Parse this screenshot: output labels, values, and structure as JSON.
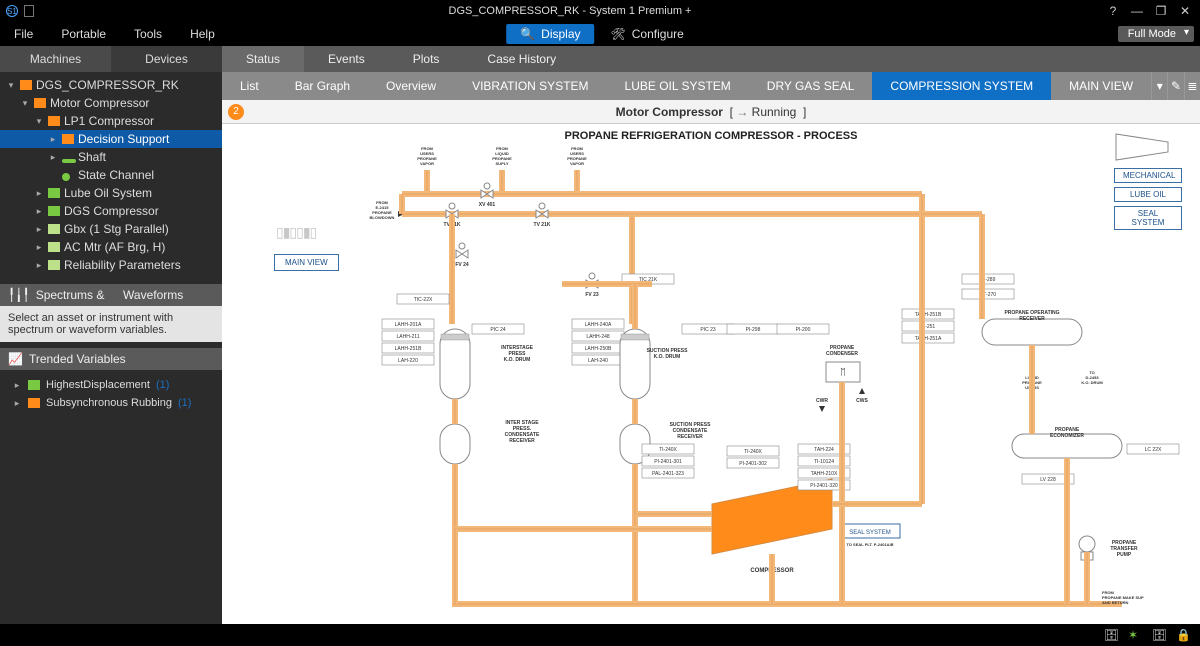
{
  "window": {
    "title": "DGS_COMPRESSOR_RK - System 1 Premium +",
    "mode": "Full Mode"
  },
  "menubar": {
    "items": [
      "File",
      "Portable",
      "Tools",
      "Help"
    ],
    "display_btn": "Display",
    "configure_btn": "Configure"
  },
  "sidebar": {
    "tabs": [
      "Machines",
      "Devices"
    ],
    "active_tab": 0,
    "tree": [
      {
        "label": "DGS_COMPRESSOR_RK",
        "indent": 0,
        "arrow": "▾",
        "icon": "ic-orange"
      },
      {
        "label": "Motor Compressor",
        "indent": 1,
        "arrow": "▾",
        "icon": "ic-orange"
      },
      {
        "label": "LP1 Compressor",
        "indent": 2,
        "arrow": "▾",
        "icon": "ic-orange"
      },
      {
        "label": "Decision Support",
        "indent": 3,
        "arrow": "▸",
        "icon": "ic-orange",
        "selected": true
      },
      {
        "label": "Shaft",
        "indent": 3,
        "arrow": "▸",
        "icon": "ic-bar"
      },
      {
        "label": "State Channel",
        "indent": 3,
        "arrow": "",
        "icon": "ic-dot"
      },
      {
        "label": "Lube Oil System",
        "indent": 2,
        "arrow": "▸",
        "icon": "ic-green"
      },
      {
        "label": "DGS Compressor",
        "indent": 2,
        "arrow": "▸",
        "icon": "ic-green"
      },
      {
        "label": "Gbx (1 Stg Parallel)",
        "indent": 2,
        "arrow": "▸",
        "icon": "ic-lt"
      },
      {
        "label": "AC Mtr (AF Brg, H)",
        "indent": 2,
        "arrow": "▸",
        "icon": "ic-lt"
      },
      {
        "label": "Reliability Parameters",
        "indent": 2,
        "arrow": "▸",
        "icon": "ic-lt"
      }
    ],
    "spectrums_hdr": "Spectrums &   Waveforms",
    "spectrums_msg": "Select an asset or instrument with spectrum or waveform variables.",
    "trended_hdr": "Trended Variables",
    "trended_vars": [
      {
        "label": "HighestDisplacement",
        "count": "(1)",
        "icon": "ic-green"
      },
      {
        "label": "Subsynchronous Rubbing",
        "count": "(1)",
        "icon": "ic-orange"
      }
    ]
  },
  "tabs1": {
    "items": [
      "Status",
      "Events",
      "Plots",
      "Case History"
    ],
    "active": 0
  },
  "tabs2": {
    "items": [
      "List",
      "Bar Graph",
      "Overview",
      "VIBRATION SYSTEM",
      "LUBE OIL SYSTEM",
      "DRY GAS SEAL",
      "COMPRESSION SYSTEM",
      "MAIN VIEW"
    ],
    "active": 6
  },
  "asset_bar": {
    "badge": "2",
    "name": "Motor Compressor",
    "state": "Running"
  },
  "diagram": {
    "title": "PROPANE REFRIGERATION COMPRESSOR  - PROCESS",
    "legend": [
      "MECHANICAL",
      "LUBE OIL",
      "SEAL SYSTEM"
    ],
    "mainview_btn": "MAIN VIEW",
    "pipe_color": "#f4b77a",
    "pipe_border": "#d68a3e",
    "box_border": "#888888",
    "compressor_fill": "#ff8c1a",
    "top_sources": [
      "FROM USERS PROPANE VAPOR",
      "FROM LIQUID PROPANE SUPLY",
      "FROM USERS PROPANE VAPOR"
    ],
    "side_source": "FROM E-2415 PROPANE BLOWDOWN",
    "valves": [
      "XV 401",
      "TV 21K",
      "TV 21K",
      "FV 24",
      "FV 23",
      "TIC 21K"
    ],
    "tags_left": [
      "TIC-22X",
      "LAHH-201A",
      "LAHH-211",
      "LAHH-251B",
      "LAH-220",
      "PIC 24"
    ],
    "tags_mid": [
      "LAHH-240A",
      "LAHH-248",
      "LAHH-250B",
      "LAH-240",
      "PIC 23",
      "PI-298",
      "PI-200"
    ],
    "tags_right": [
      "TAHH-251B",
      "TI-251",
      "TAHH-251A",
      "PI-289",
      "ST-270"
    ],
    "tags_comp": [
      "TI-240X",
      "PI-2401-301",
      "PAL-2401-323",
      "TI-240X",
      "PI-2401-302",
      "TAH-224",
      "TI-10124",
      "TAHH-210X",
      "PI-2401-320"
    ],
    "vessels": {
      "interstage_drum": "INTERSTAGE PRESS K.O. DRUM",
      "suction_drum": "SUCTION PRESS K.O. DRUM",
      "interstage_recv": "INTER STAGE PRESS. CONDENSATE RECEIVER",
      "suction_recv": "SUCTION PRESS CONDENSATE RECEIVER",
      "condenser": "PROPANE CONDENSER",
      "op_receiver": "PROPANE OPERATING RECEIVER",
      "economizer": "PROPANE ECONOMIZER",
      "transfer_pump": "PROPANE TRANSFER PUMP"
    },
    "compressor_label": "COMPRESSOR",
    "seal_system_box": "SEAL SYSTEM",
    "seal_note": "TO SEAL PLT. P-2401A/B",
    "cwr": "CWR",
    "cws": "CWS",
    "to_liquid": "TO LIQUID PROPANE USERS",
    "to_d2453": "TO D-2453 K.O. DRUM",
    "lv228": "LV 228",
    "lc22x": "LC 22X",
    "makeup": "FROM PROPANE MAKE SUP AND RETURN"
  },
  "colors": {
    "accent": "#0f6fc5",
    "orange": "#ff8c1a",
    "green": "#7ac943",
    "grey_dark": "#2b2b2b",
    "grey_mid": "#5a5a5a"
  }
}
